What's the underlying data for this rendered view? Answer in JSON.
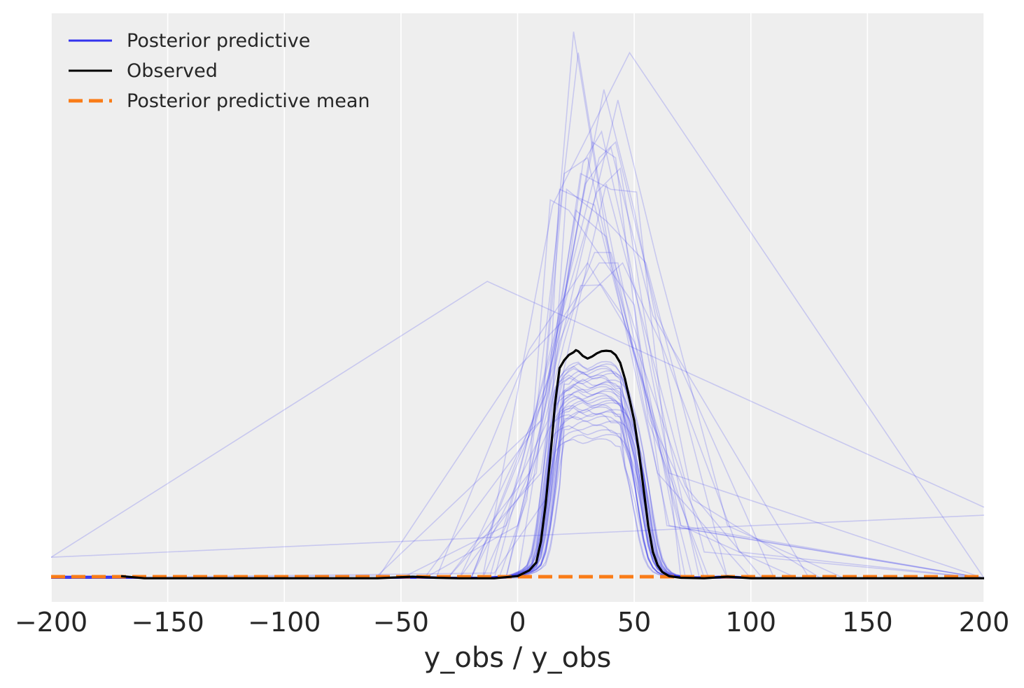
{
  "chart_data": {
    "type": "line",
    "xlabel": "y_obs / y_obs",
    "ylabel": "",
    "xlim": [
      -200,
      200
    ],
    "ylim": [
      -0.0045,
      0.1075
    ],
    "xticks": [
      -200,
      -150,
      -100,
      -50,
      0,
      50,
      100,
      150,
      200
    ],
    "xtick_labels": [
      "−200",
      "−150",
      "−100",
      "−50",
      "0",
      "50",
      "100",
      "150",
      "200"
    ],
    "yticks_visible": false,
    "grid": true,
    "legend_placement": "top-left",
    "colors": {
      "background": "#eeeeee",
      "grid": "#ffffff",
      "posterior_predictive": "#3333ee",
      "observed": "#000000",
      "mean": "#fa7c17"
    },
    "legend": [
      {
        "label": "Posterior predictive",
        "style": "solid",
        "color": "#3333ee"
      },
      {
        "label": "Observed",
        "style": "solid",
        "color": "#000000"
      },
      {
        "label": "Posterior predictive mean",
        "style": "dashed",
        "color": "#fa7c17"
      }
    ],
    "series": [
      {
        "name": "Observed",
        "x": [
          -170,
          -160,
          -100,
          -60,
          -45,
          -35,
          -25,
          -10,
          0,
          5,
          8,
          10,
          12,
          14,
          16,
          18,
          20,
          22,
          24,
          25,
          26,
          28,
          30,
          32,
          34,
          36,
          38,
          40,
          42,
          44,
          46,
          48,
          50,
          52,
          54,
          56,
          58,
          60,
          62,
          65,
          70,
          80,
          90,
          100,
          150,
          200
        ],
        "y": [
          0.0004,
          0.0,
          0.0,
          0.0,
          0.0003,
          0.0001,
          0.0,
          0.0,
          0.0004,
          0.0015,
          0.003,
          0.007,
          0.014,
          0.023,
          0.033,
          0.04,
          0.0415,
          0.0425,
          0.043,
          0.0434,
          0.0432,
          0.0423,
          0.0418,
          0.0422,
          0.0428,
          0.0432,
          0.0433,
          0.0432,
          0.0425,
          0.041,
          0.038,
          0.034,
          0.03,
          0.024,
          0.017,
          0.01,
          0.005,
          0.0025,
          0.0012,
          0.0004,
          0.0001,
          0.0,
          0.0003,
          0.0,
          0.0,
          0.0
        ]
      },
      {
        "name": "Posterior predictive mean",
        "x": [
          -200,
          200
        ],
        "y": [
          0.0003,
          0.0003
        ]
      }
    ],
    "posterior_predictive_draws": [
      {
        "x": [
          -200,
          -13,
          200
        ],
        "y": [
          0.004,
          0.0565,
          0.0135
        ]
      },
      {
        "x": [
          -200,
          200
        ],
        "y": [
          0.004,
          0.012
        ]
      },
      {
        "x": [
          -200,
          -15,
          15,
          48,
          200
        ],
        "y": [
          0.0,
          0.0,
          0.071,
          0.1,
          0.0
        ]
      },
      {
        "x": [
          -180,
          -60,
          10,
          24,
          40,
          70,
          120,
          200
        ],
        "y": [
          0.0,
          0.0005,
          0.03,
          0.104,
          0.06,
          0.01,
          0.0,
          0.0
        ]
      },
      {
        "x": [
          -200,
          -30,
          5,
          26,
          35,
          60,
          100,
          200
        ],
        "y": [
          0.0,
          0.0,
          0.02,
          0.1,
          0.075,
          0.02,
          0.0,
          0.0
        ]
      },
      {
        "x": [
          -200,
          -20,
          12,
          37,
          50,
          75,
          130,
          200
        ],
        "y": [
          0.0,
          0.0,
          0.035,
          0.093,
          0.07,
          0.015,
          0.0,
          0.0
        ]
      },
      {
        "x": [
          -200,
          -40,
          0,
          43,
          60,
          90,
          140,
          200
        ],
        "y": [
          0.0,
          0.0,
          0.01,
          0.091,
          0.06,
          0.01,
          0.0,
          0.0
        ]
      },
      {
        "x": [
          -200,
          -25,
          8,
          20,
          30,
          45,
          80,
          200
        ],
        "y": [
          0.0,
          0.0,
          0.02,
          0.077,
          0.08,
          0.05,
          0.0,
          0.0
        ]
      },
      {
        "x": [
          -200,
          -10,
          12,
          21,
          38,
          55,
          90,
          200
        ],
        "y": [
          0.0,
          0.001,
          0.015,
          0.074,
          0.068,
          0.06,
          0.0,
          0.0
        ]
      },
      {
        "x": [
          -200,
          -50,
          -5,
          35,
          42,
          60,
          110,
          200
        ],
        "y": [
          0.0,
          0.0,
          0.01,
          0.08,
          0.083,
          0.05,
          0.0,
          0.0
        ]
      },
      {
        "x": [
          -200,
          -30,
          10,
          28,
          36,
          46,
          70,
          200
        ],
        "y": [
          0.0,
          0.0,
          0.02,
          0.079,
          0.085,
          0.065,
          0.01,
          0.0
        ]
      },
      {
        "x": [
          -200,
          -15,
          15,
          30,
          38,
          50,
          80,
          200
        ],
        "y": [
          0.0,
          0.0,
          0.03,
          0.06,
          0.075,
          0.055,
          0.005,
          0.0
        ]
      },
      {
        "x": [
          -200,
          -20,
          13,
          18,
          33,
          45,
          65,
          200
        ],
        "y": [
          0.0,
          0.0,
          0.03,
          0.074,
          0.071,
          0.05,
          0.02,
          0.0
        ]
      },
      {
        "x": [
          -200,
          0,
          18,
          27,
          40,
          51,
          70,
          200
        ],
        "y": [
          0.0,
          0.0,
          0.05,
          0.077,
          0.074,
          0.0735,
          0.0,
          0.0
        ]
      },
      {
        "x": [
          -200,
          -60,
          0,
          27,
          45,
          62,
          95,
          200
        ],
        "y": [
          0.0,
          0.0,
          0.04,
          0.0525,
          0.06,
          0.0442,
          0.005,
          0.0
        ]
      },
      {
        "x": [
          -200,
          -5,
          20,
          27,
          36,
          45,
          65,
          200
        ],
        "y": [
          0.0,
          0.0,
          0.045,
          0.0557,
          0.0558,
          0.05,
          0.01,
          0.0
        ]
      },
      {
        "x": [
          -200,
          -10,
          20,
          35,
          43,
          55,
          75,
          200
        ],
        "y": [
          0.0,
          0.0,
          0.05,
          0.06,
          0.06,
          0.035,
          0.0,
          0.0
        ]
      },
      {
        "x": [
          -200,
          -35,
          5,
          30,
          50,
          72,
          105,
          200
        ],
        "y": [
          0.0,
          0.0,
          0.0435,
          0.06,
          0.045,
          0.0175,
          0.0,
          0.0
        ]
      },
      {
        "x": [
          -200,
          -40,
          10,
          25,
          38,
          57,
          90,
          200
        ],
        "y": [
          0.0,
          0.0,
          0.03,
          0.07,
          0.065,
          0.03,
          0.0,
          0.0
        ]
      },
      {
        "x": [
          -200,
          -20,
          15,
          32,
          42,
          56,
          82,
          200
        ],
        "y": [
          0.0,
          0.0,
          0.04,
          0.083,
          0.08,
          0.03,
          0.0,
          0.0
        ]
      },
      {
        "x": [
          -200,
          -25,
          12,
          29,
          40,
          58,
          125,
          200
        ],
        "y": [
          0.0,
          0.0,
          0.035,
          0.075,
          0.082,
          0.05,
          0.0,
          0.0
        ]
      },
      {
        "x": [
          -200,
          -5,
          18,
          33,
          40,
          52,
          72,
          200
        ],
        "y": [
          0.0,
          0.0,
          0.045,
          0.062,
          0.062,
          0.045,
          0.0,
          0.0
        ]
      },
      {
        "x": [
          -200,
          -12,
          22,
          34,
          44,
          58,
          78,
          200
        ],
        "y": [
          0.0,
          0.0,
          0.055,
          0.0735,
          0.078,
          0.04,
          0.0,
          0.0
        ]
      },
      {
        "x": [
          -200,
          -8,
          4,
          14,
          22,
          50,
          64,
          200
        ],
        "y": [
          0.0,
          0.0,
          0.015,
          0.072,
          0.07,
          0.052,
          0.01,
          0.0
        ]
      }
    ],
    "posterior_predictive_kde_draws": [
      {
        "shift": 0.0,
        "scale": 0.94
      },
      {
        "shift": -1.5,
        "scale": 0.92
      },
      {
        "shift": 1.5,
        "scale": 0.9
      },
      {
        "shift": -3.0,
        "scale": 0.88
      },
      {
        "shift": 3.0,
        "scale": 0.86
      },
      {
        "shift": -1.0,
        "scale": 0.84
      },
      {
        "shift": 2.0,
        "scale": 0.82
      },
      {
        "shift": -2.5,
        "scale": 0.8
      },
      {
        "shift": 0.5,
        "scale": 0.78
      },
      {
        "shift": 2.5,
        "scale": 0.76
      },
      {
        "shift": -2.0,
        "scale": 0.74
      },
      {
        "shift": 1.0,
        "scale": 0.72
      },
      {
        "shift": -0.5,
        "scale": 0.7
      },
      {
        "shift": 3.5,
        "scale": 0.68
      },
      {
        "shift": -3.5,
        "scale": 0.66
      },
      {
        "shift": 0.0,
        "scale": 0.64
      },
      {
        "shift": 1.8,
        "scale": 0.62
      },
      {
        "shift": -1.8,
        "scale": 0.6
      },
      {
        "shift": 0.8,
        "scale": 0.93
      },
      {
        "shift": -0.8,
        "scale": 0.91
      },
      {
        "shift": 2.8,
        "scale": 0.89
      },
      {
        "shift": -2.8,
        "scale": 0.87
      },
      {
        "shift": 1.2,
        "scale": 0.85
      },
      {
        "shift": -1.2,
        "scale": 0.83
      },
      {
        "shift": 0.3,
        "scale": 0.81
      },
      {
        "shift": -0.3,
        "scale": 0.79
      },
      {
        "shift": 2.2,
        "scale": 0.77
      },
      {
        "shift": -2.2,
        "scale": 0.75
      },
      {
        "shift": 4.0,
        "scale": 0.73
      },
      {
        "shift": -4.0,
        "scale": 0.71
      }
    ]
  }
}
